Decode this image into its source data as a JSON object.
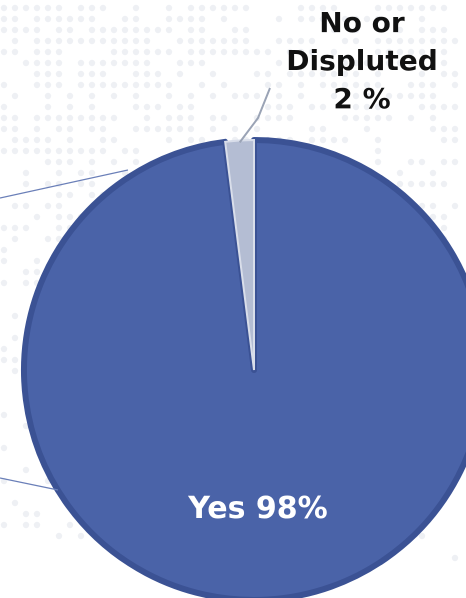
{
  "chart_data": {
    "type": "pie",
    "title": "",
    "slices": [
      {
        "label": "Yes",
        "value": 98,
        "display": "Yes 98%",
        "color": "#4a63a8"
      },
      {
        "label": "No or Displuted",
        "value": 2,
        "display_lines": [
          "No  or",
          "Displuted",
          "2 %"
        ],
        "color": "#b4bdd3"
      }
    ],
    "legend": "none",
    "colors": {
      "primary": "#4a63a8",
      "primary_edge": "#3b5294",
      "secondary": "#b4bdd3",
      "leader_line": "#9aa3b5",
      "dot_pattern": "#eef0f4"
    }
  }
}
